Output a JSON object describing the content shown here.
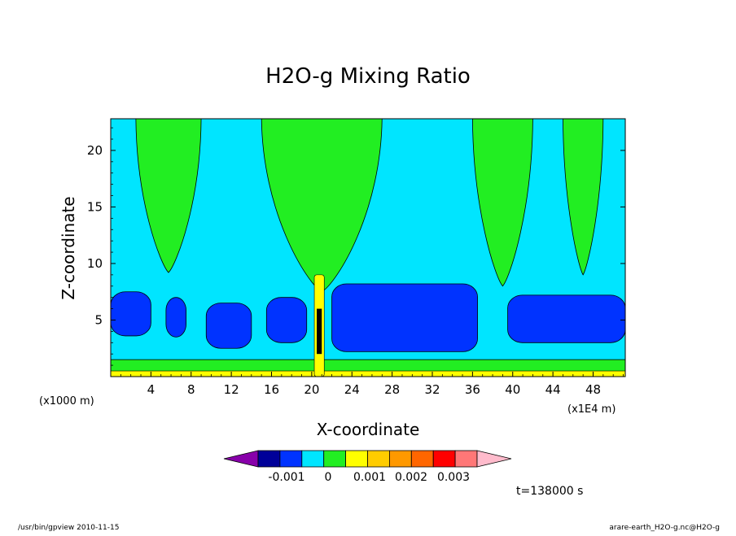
{
  "chart_data": {
    "type": "contour",
    "title": "H2O-g Mixing Ratio",
    "xlabel": "X-coordinate",
    "ylabel": "Z-coordinate",
    "x_unit": "(x1000 m)",
    "y_unit": "(x1E4 m)",
    "xlim": [
      0,
      51.2
    ],
    "ylim": [
      0,
      22.8
    ],
    "x_ticks": [
      4,
      8,
      12,
      16,
      20,
      24,
      28,
      32,
      36,
      40,
      44,
      48
    ],
    "y_ticks": [
      5,
      10,
      15,
      20
    ],
    "grid": false,
    "time_label": "t=138000 s",
    "colorbar": {
      "orientation": "horizontal",
      "position": "bottom",
      "colors": [
        "#8800aa",
        "#000099",
        "#0033ff",
        "#00e5ff",
        "#22ee22",
        "#ffff00",
        "#ffcc00",
        "#ff9900",
        "#ff6600",
        "#ff0000",
        "#ff7777",
        "#ffbbcc"
      ],
      "labels": [
        "-0.001",
        "0",
        "0.001",
        "0.002",
        "0.003"
      ]
    },
    "fields": {
      "background": "#00e5ff",
      "plumes_green": [
        {
          "x0": 2.5,
          "x1": 9.0,
          "z_bottom": 9.2
        },
        {
          "x0": 15.0,
          "x1": 27.0,
          "z_bottom": 7.5
        },
        {
          "x0": 36.0,
          "x1": 42.0,
          "z_bottom": 8.0
        },
        {
          "x0": 45.0,
          "x1": 49.0,
          "z_bottom": 9.0
        }
      ],
      "blobs_blue": [
        {
          "x0": 0.0,
          "x1": 4.0,
          "z0": 3.6,
          "z1": 7.5
        },
        {
          "x0": 5.5,
          "x1": 7.5,
          "z0": 3.5,
          "z1": 7.0
        },
        {
          "x0": 9.5,
          "x1": 14.0,
          "z0": 2.5,
          "z1": 6.5
        },
        {
          "x0": 15.5,
          "x1": 19.5,
          "z0": 3.0,
          "z1": 7.0
        },
        {
          "x0": 22.0,
          "x1": 36.5,
          "z0": 2.2,
          "z1": 8.2
        },
        {
          "x0": 39.5,
          "x1": 51.2,
          "z0": 3.0,
          "z1": 7.2
        }
      ],
      "core_black": {
        "x0": 20.5,
        "x1": 21.0,
        "z0": 2.0,
        "z1": 6.0
      },
      "surface_green_top": 1.5,
      "surface_yellow_top": 0.5
    },
    "footer_left": "/usr/bin/gpview   2010-11-15",
    "footer_right": "arare-earth_H2O-g.nc@H2O-g"
  }
}
